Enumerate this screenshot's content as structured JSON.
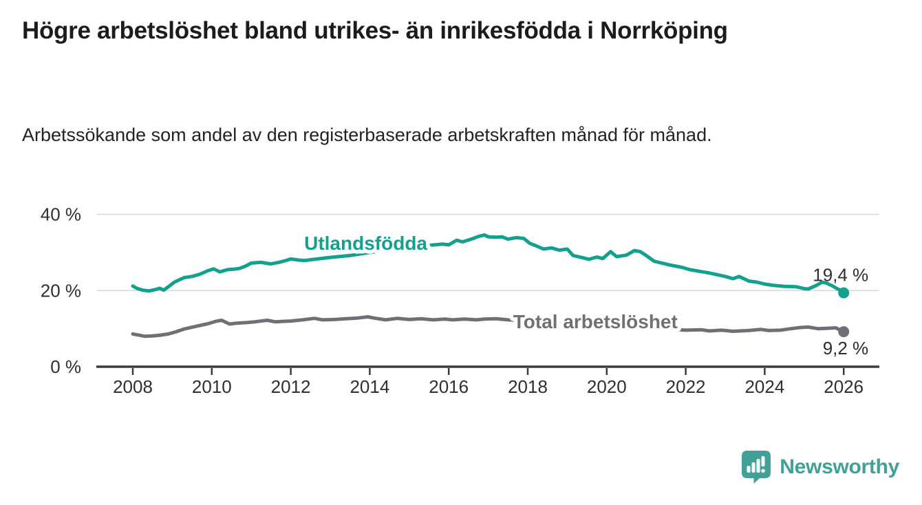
{
  "header": {
    "title": "Högre arbetslöshet bland utrikes- än inrikesfödda i Norrköping",
    "subtitle": "Arbetssökande som andel av den registerbaserade arbetskraften månad för månad."
  },
  "chart_data": {
    "type": "line",
    "title": "Högre arbetslöshet bland utrikes- än inrikesfödda i Norrköping",
    "subtitle": "Arbetssökande som andel av den registerbaserade arbetskraften månad för månad.",
    "unit": "%",
    "grid": "horizontal-only",
    "legend_position": "inline-on-line",
    "x_axis": {
      "ticks": [
        2008,
        2010,
        2012,
        2014,
        2016,
        2018,
        2020,
        2022,
        2024,
        2026
      ],
      "range": [
        2007.1,
        2026.9
      ]
    },
    "y_axis": {
      "ticks": [
        {
          "label": "0 %",
          "value": 0
        },
        {
          "label": "20 %",
          "value": 20
        },
        {
          "label": "40 %",
          "value": 40
        }
      ],
      "range": [
        0,
        45.5
      ]
    },
    "series": [
      {
        "name": "Utlandsfödda",
        "color": "#13a08f",
        "inline_label": {
          "text": "Utlandsfödda",
          "x": 2012.34,
          "y": 30.7
        },
        "end_label": "19,4 %",
        "end_value": 19.4,
        "points": [
          [
            2008.0,
            21.2
          ],
          [
            2008.1,
            20.6
          ],
          [
            2008.25,
            20.1
          ],
          [
            2008.4,
            19.9
          ],
          [
            2008.55,
            20.2
          ],
          [
            2008.68,
            20.6
          ],
          [
            2008.78,
            20.1
          ],
          [
            2008.9,
            21.0
          ],
          [
            2009.05,
            22.2
          ],
          [
            2009.3,
            23.4
          ],
          [
            2009.5,
            23.7
          ],
          [
            2009.7,
            24.3
          ],
          [
            2009.9,
            25.2
          ],
          [
            2010.05,
            25.7
          ],
          [
            2010.2,
            24.9
          ],
          [
            2010.4,
            25.5
          ],
          [
            2010.55,
            25.6
          ],
          [
            2010.7,
            25.8
          ],
          [
            2010.85,
            26.4
          ],
          [
            2011.0,
            27.2
          ],
          [
            2011.25,
            27.4
          ],
          [
            2011.5,
            27.0
          ],
          [
            2011.7,
            27.4
          ],
          [
            2011.85,
            27.8
          ],
          [
            2012.0,
            28.3
          ],
          [
            2012.2,
            28.0
          ],
          [
            2012.35,
            27.9
          ],
          [
            2012.6,
            28.2
          ],
          [
            2013.0,
            28.7
          ],
          [
            2013.5,
            29.2
          ],
          [
            2014.0,
            30.0
          ],
          [
            2014.5,
            30.7
          ],
          [
            2015.0,
            31.3
          ],
          [
            2015.4,
            31.8
          ],
          [
            2015.85,
            32.2
          ],
          [
            2016.0,
            32.0
          ],
          [
            2016.2,
            33.2
          ],
          [
            2016.35,
            32.8
          ],
          [
            2016.6,
            33.6
          ],
          [
            2016.75,
            34.2
          ],
          [
            2016.9,
            34.6
          ],
          [
            2017.0,
            34.1
          ],
          [
            2017.2,
            34.0
          ],
          [
            2017.35,
            34.1
          ],
          [
            2017.5,
            33.5
          ],
          [
            2017.7,
            33.9
          ],
          [
            2017.9,
            33.7
          ],
          [
            2018.05,
            32.4
          ],
          [
            2018.2,
            31.8
          ],
          [
            2018.4,
            30.9
          ],
          [
            2018.6,
            31.2
          ],
          [
            2018.8,
            30.6
          ],
          [
            2019.0,
            30.9
          ],
          [
            2019.15,
            29.2
          ],
          [
            2019.4,
            28.6
          ],
          [
            2019.55,
            28.2
          ],
          [
            2019.75,
            28.8
          ],
          [
            2019.9,
            28.4
          ],
          [
            2020.1,
            30.2
          ],
          [
            2020.25,
            28.9
          ],
          [
            2020.5,
            29.3
          ],
          [
            2020.7,
            30.5
          ],
          [
            2020.85,
            30.2
          ],
          [
            2021.0,
            29.2
          ],
          [
            2021.2,
            27.7
          ],
          [
            2021.6,
            26.7
          ],
          [
            2021.9,
            26.1
          ],
          [
            2022.1,
            25.5
          ],
          [
            2022.6,
            24.6
          ],
          [
            2023.0,
            23.7
          ],
          [
            2023.2,
            23.1
          ],
          [
            2023.35,
            23.7
          ],
          [
            2023.6,
            22.5
          ],
          [
            2023.8,
            22.2
          ],
          [
            2024.0,
            21.7
          ],
          [
            2024.2,
            21.4
          ],
          [
            2024.5,
            21.1
          ],
          [
            2024.8,
            21.0
          ],
          [
            2025.0,
            20.5
          ],
          [
            2025.1,
            20.4
          ],
          [
            2025.3,
            21.3
          ],
          [
            2025.45,
            22.2
          ],
          [
            2025.55,
            22.0
          ],
          [
            2025.7,
            21.3
          ],
          [
            2025.85,
            20.4
          ],
          [
            2025.95,
            20.0
          ],
          [
            2026.0,
            19.4
          ]
        ]
      },
      {
        "name": "Total arbetslöshet",
        "color": "#716f75",
        "inline_label": {
          "text": "Total arbetslöshet",
          "x": 2017.63,
          "y": 10.1
        },
        "end_label": "9,2 %",
        "end_value": 9.2,
        "points": [
          [
            2008.0,
            8.6
          ],
          [
            2008.15,
            8.3
          ],
          [
            2008.3,
            8.0
          ],
          [
            2008.5,
            8.1
          ],
          [
            2008.7,
            8.3
          ],
          [
            2008.9,
            8.6
          ],
          [
            2009.1,
            9.2
          ],
          [
            2009.3,
            9.9
          ],
          [
            2009.6,
            10.6
          ],
          [
            2009.9,
            11.3
          ],
          [
            2010.1,
            11.9
          ],
          [
            2010.25,
            12.2
          ],
          [
            2010.45,
            11.2
          ],
          [
            2010.6,
            11.4
          ],
          [
            2010.9,
            11.6
          ],
          [
            2011.1,
            11.8
          ],
          [
            2011.4,
            12.2
          ],
          [
            2011.6,
            11.8
          ],
          [
            2011.8,
            11.9
          ],
          [
            2012.0,
            12.0
          ],
          [
            2012.3,
            12.3
          ],
          [
            2012.6,
            12.7
          ],
          [
            2012.8,
            12.3
          ],
          [
            2013.1,
            12.4
          ],
          [
            2013.4,
            12.6
          ],
          [
            2013.7,
            12.8
          ],
          [
            2013.95,
            13.1
          ],
          [
            2014.1,
            12.8
          ],
          [
            2014.4,
            12.3
          ],
          [
            2014.7,
            12.7
          ],
          [
            2015.0,
            12.4
          ],
          [
            2015.3,
            12.6
          ],
          [
            2015.6,
            12.3
          ],
          [
            2015.9,
            12.5
          ],
          [
            2016.1,
            12.3
          ],
          [
            2016.4,
            12.5
          ],
          [
            2016.7,
            12.3
          ],
          [
            2016.9,
            12.5
          ],
          [
            2017.2,
            12.6
          ],
          [
            2017.5,
            12.3
          ],
          [
            2017.8,
            12.2
          ],
          [
            2018.2,
            11.9
          ],
          [
            2018.6,
            11.5
          ],
          [
            2019.0,
            11.1
          ],
          [
            2019.5,
            10.7
          ],
          [
            2020.0,
            10.4
          ],
          [
            2020.5,
            10.8
          ],
          [
            2021.0,
            10.5
          ],
          [
            2021.5,
            9.9
          ],
          [
            2022.0,
            9.6
          ],
          [
            2022.4,
            9.7
          ],
          [
            2022.6,
            9.4
          ],
          [
            2022.9,
            9.6
          ],
          [
            2023.2,
            9.3
          ],
          [
            2023.6,
            9.5
          ],
          [
            2023.9,
            9.8
          ],
          [
            2024.1,
            9.5
          ],
          [
            2024.4,
            9.6
          ],
          [
            2024.6,
            9.9
          ],
          [
            2024.9,
            10.3
          ],
          [
            2025.1,
            10.4
          ],
          [
            2025.35,
            10.0
          ],
          [
            2025.6,
            10.1
          ],
          [
            2025.8,
            10.2
          ],
          [
            2026.0,
            9.2
          ]
        ]
      }
    ]
  },
  "footer": {
    "brand": "Newsworthy",
    "brand_color": "#41a098",
    "logo_icon": "bar-chart-speech-bubble-icon"
  },
  "colors": {
    "background": "#ffffff",
    "grid_line": "#d9d9d9",
    "axis_line": "#3b3b3b",
    "tick_text": "#2f2f2f",
    "value_label_text": "#2e2e2e"
  }
}
